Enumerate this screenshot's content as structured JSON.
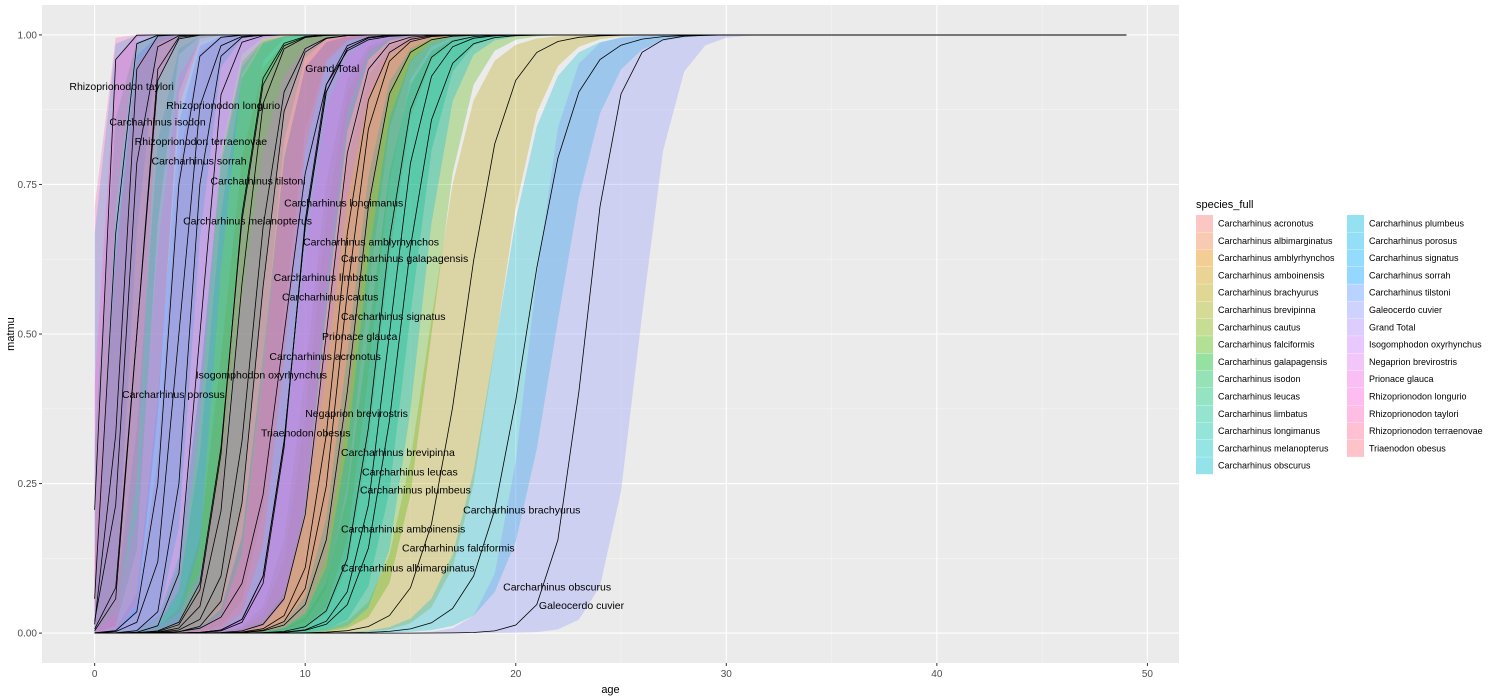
{
  "chart_data": {
    "type": "line",
    "xlabel": "age",
    "ylabel": "matmu",
    "xlim": [
      -2.5,
      51.5
    ],
    "ylim": [
      -0.05,
      1.05
    ],
    "x_ticks": [
      "0",
      "10",
      "20",
      "30",
      "40",
      "50"
    ],
    "x_tick_values": [
      0,
      10,
      20,
      30,
      40,
      50
    ],
    "y_ticks": [
      "0.00",
      "0.25",
      "0.50",
      "0.75",
      "1.00"
    ],
    "y_tick_values": [
      0,
      0.25,
      0.5,
      0.75,
      1.0
    ],
    "grid": true,
    "legend": {
      "title": "species_full",
      "placement": "right",
      "columns": 2
    },
    "band_opacity": 0.3,
    "series": [
      {
        "name": "Carcharhinus acronotus",
        "color": "#F8766D",
        "a50": 5.0,
        "slope": 2.2,
        "band": 1.6,
        "label_y": 0.463,
        "label_x": 8.3
      },
      {
        "name": "Carcharhinus albimarginatus",
        "color": "#EE8044",
        "a50": 12.3,
        "slope": 1.3,
        "band": 1.3,
        "label_y": 0.11,
        "label_x": 11.7
      },
      {
        "name": "Carcharhinus amblyrhynchos",
        "color": "#E08B00",
        "a50": 7.5,
        "slope": 1.5,
        "band": 1.4,
        "label_y": 0.655,
        "label_x": 9.9
      },
      {
        "name": "Carcharhinus amboinensis",
        "color": "#CE9500",
        "a50": 11.8,
        "slope": 1.4,
        "band": 1.4,
        "label_y": 0.175,
        "label_x": 11.7
      },
      {
        "name": "Carcharhinus brachyurus",
        "color": "#B79F00",
        "a50": 17.5,
        "slope": 1.0,
        "band": 1.6,
        "label_y": 0.207,
        "label_x": 17.5
      },
      {
        "name": "Carcharhinus brevipinna",
        "color": "#9CA700",
        "a50": 11.5,
        "slope": 1.4,
        "band": 1.3,
        "label_y": 0.303,
        "label_x": 11.7
      },
      {
        "name": "Carcharhinus cautus",
        "color": "#7AAE00",
        "a50": 6.5,
        "slope": 1.7,
        "band": 1.3,
        "label_y": 0.563,
        "label_x": 8.9
      },
      {
        "name": "Carcharhinus falciformis",
        "color": "#4BB400",
        "a50": 14.5,
        "slope": 1.2,
        "band": 1.5,
        "label_y": 0.143,
        "label_x": 14.6
      },
      {
        "name": "Carcharhinus galapagensis",
        "color": "#00B81F",
        "a50": 9.5,
        "slope": 1.5,
        "band": 1.4,
        "label_y": 0.627,
        "label_x": 11.7
      },
      {
        "name": "Carcharhinus isodon",
        "color": "#00BB4E",
        "a50": 1.5,
        "slope": 2.6,
        "band": 1.2,
        "label_y": 0.855,
        "label_x": 0.7
      },
      {
        "name": "Carcharhinus leucas",
        "color": "#00BE70",
        "a50": 13.5,
        "slope": 1.3,
        "band": 1.4,
        "label_y": 0.27,
        "label_x": 12.7
      },
      {
        "name": "Carcharhinus limbatus",
        "color": "#00BF8C",
        "a50": 6.8,
        "slope": 1.7,
        "band": 1.3,
        "label_y": 0.595,
        "label_x": 8.5
      },
      {
        "name": "Carcharhinus longimanus",
        "color": "#00C0A5",
        "a50": 6.5,
        "slope": 1.6,
        "band": 1.3,
        "label_y": 0.72,
        "label_x": 9.0
      },
      {
        "name": "Carcharhinus melanopterus",
        "color": "#00C0BC",
        "a50": 3.5,
        "slope": 2.2,
        "band": 1.2,
        "label_y": 0.69,
        "label_x": 4.2
      },
      {
        "name": "Carcharhinus obscurus",
        "color": "#00BDD0",
        "a50": 20.5,
        "slope": 0.9,
        "band": 1.4,
        "label_y": 0.078,
        "label_x": 19.4
      },
      {
        "name": "Carcharhinus plumbeus",
        "color": "#00B8E1",
        "a50": 14.0,
        "slope": 1.3,
        "band": 1.4,
        "label_y": 0.24,
        "label_x": 12.6
      },
      {
        "name": "Carcharhinus porosus",
        "color": "#00B2EF",
        "a50": 0.8,
        "slope": 3.5,
        "band": 1.0,
        "label_y": 0.4,
        "label_x": 1.3
      },
      {
        "name": "Carcharhinus signatus",
        "color": "#00ABFA",
        "a50": 9.5,
        "slope": 1.5,
        "band": 1.4,
        "label_y": 0.53,
        "label_x": 11.7
      },
      {
        "name": "Carcharhinus sorrah",
        "color": "#00A1FF",
        "a50": 2.0,
        "slope": 2.8,
        "band": 1.2,
        "label_y": 0.79,
        "label_x": 2.7
      },
      {
        "name": "Carcharhinus tilstoni",
        "color": "#5796FF",
        "a50": 4.5,
        "slope": 2.2,
        "band": 1.3,
        "label_y": 0.757,
        "label_x": 5.5
      },
      {
        "name": "Galeocerdo cuvier",
        "color": "#8B93FF",
        "a50": 23.3,
        "slope": 1.3,
        "band": 2.6,
        "label_y": 0.047,
        "label_x": 21.1
      },
      {
        "name": "Grand Total",
        "color": "#AE87FF",
        "a50": 9.0,
        "slope": 1.2,
        "band": 2.2,
        "label_y": 0.945,
        "label_x": 10.0
      },
      {
        "name": "Isogomphodon oxyrhynchus",
        "color": "#C77CFF",
        "a50": 4.0,
        "slope": 2.0,
        "band": 1.3,
        "label_y": 0.432,
        "label_x": 4.8
      },
      {
        "name": "Negaprion brevirostris",
        "color": "#E076F0",
        "a50": 11.0,
        "slope": 1.4,
        "band": 1.4,
        "label_y": 0.368,
        "label_x": 10.0
      },
      {
        "name": "Prionace glauca",
        "color": "#F166E8",
        "a50": 9.5,
        "slope": 1.6,
        "band": 1.3,
        "label_y": 0.497,
        "label_x": 10.8
      },
      {
        "name": "Rhizoprionodon longurio",
        "color": "#FA62DB",
        "a50": 1.2,
        "slope": 3.5,
        "band": 1.1,
        "label_y": 0.883,
        "label_x": 3.4
      },
      {
        "name": "Rhizoprionodon taylori",
        "color": "#FF62BC",
        "a50": 0.3,
        "slope": 4.5,
        "band": 0.5,
        "label_y": 0.915,
        "label_x": -1.2
      },
      {
        "name": "Rhizoprionodon terraenovae",
        "color": "#FF6A98",
        "a50": 2.0,
        "slope": 2.5,
        "band": 1.2,
        "label_y": 0.823,
        "label_x": 1.9
      },
      {
        "name": "Triaenodon obesus",
        "color": "#FC717F",
        "a50": 7.8,
        "slope": 1.6,
        "band": 1.3,
        "label_y": 0.335,
        "label_x": 7.9
      }
    ]
  }
}
